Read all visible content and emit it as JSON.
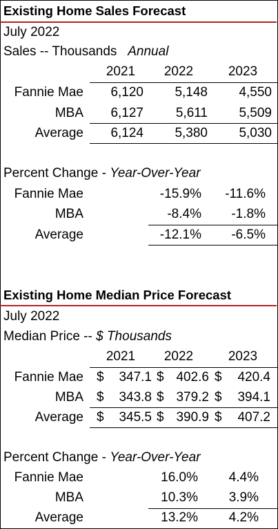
{
  "sales": {
    "title": "Existing Home Sales Forecast",
    "date": "July 2022",
    "subtitle_prefix": "Sales -- Thousands",
    "subtitle_italic": "Annual",
    "years": [
      "2021",
      "2022",
      "2023"
    ],
    "rows": [
      {
        "label": "Fannie Mae",
        "values": [
          "6,120",
          "5,148",
          "4,550"
        ]
      },
      {
        "label": "MBA",
        "values": [
          "6,127",
          "5,611",
          "5,509"
        ]
      },
      {
        "label": "Average",
        "values": [
          "6,124",
          "5,380",
          "5,030"
        ]
      }
    ],
    "pct_prefix": "Percent Change - ",
    "pct_italic": "Year-Over-Year",
    "pct_rows": [
      {
        "label": "Fannie Mae",
        "values": [
          "-15.9%",
          "-11.6%"
        ]
      },
      {
        "label": "MBA",
        "values": [
          "-8.4%",
          "-1.8%"
        ]
      },
      {
        "label": "Average",
        "values": [
          "-12.1%",
          "-6.5%"
        ]
      }
    ]
  },
  "price": {
    "title": "Existing Home Median Price Forecast",
    "date": "July 2022",
    "subtitle_prefix": "Median Price -- ",
    "subtitle_italic": "$ Thousands",
    "years": [
      "2021",
      "2022",
      "2023"
    ],
    "currency": "$",
    "rows": [
      {
        "label": "Fannie Mae",
        "values": [
          "347.1",
          "402.6",
          "420.4"
        ]
      },
      {
        "label": "MBA",
        "values": [
          "343.8",
          "379.2",
          "394.1"
        ]
      },
      {
        "label": "Average",
        "values": [
          "345.5",
          "390.9",
          "407.2"
        ]
      }
    ],
    "pct_prefix": "Percent Change - ",
    "pct_italic": "Year-Over-Year",
    "pct_rows": [
      {
        "label": "Fannie Mae",
        "values": [
          "16.0%",
          "4.4%"
        ]
      },
      {
        "label": "MBA",
        "values": [
          "10.3%",
          "3.9%"
        ]
      },
      {
        "label": "Average",
        "values": [
          "13.2%",
          "4.2%"
        ]
      }
    ]
  },
  "colors": {
    "title_rule": "#b22222",
    "text": "#000000"
  }
}
